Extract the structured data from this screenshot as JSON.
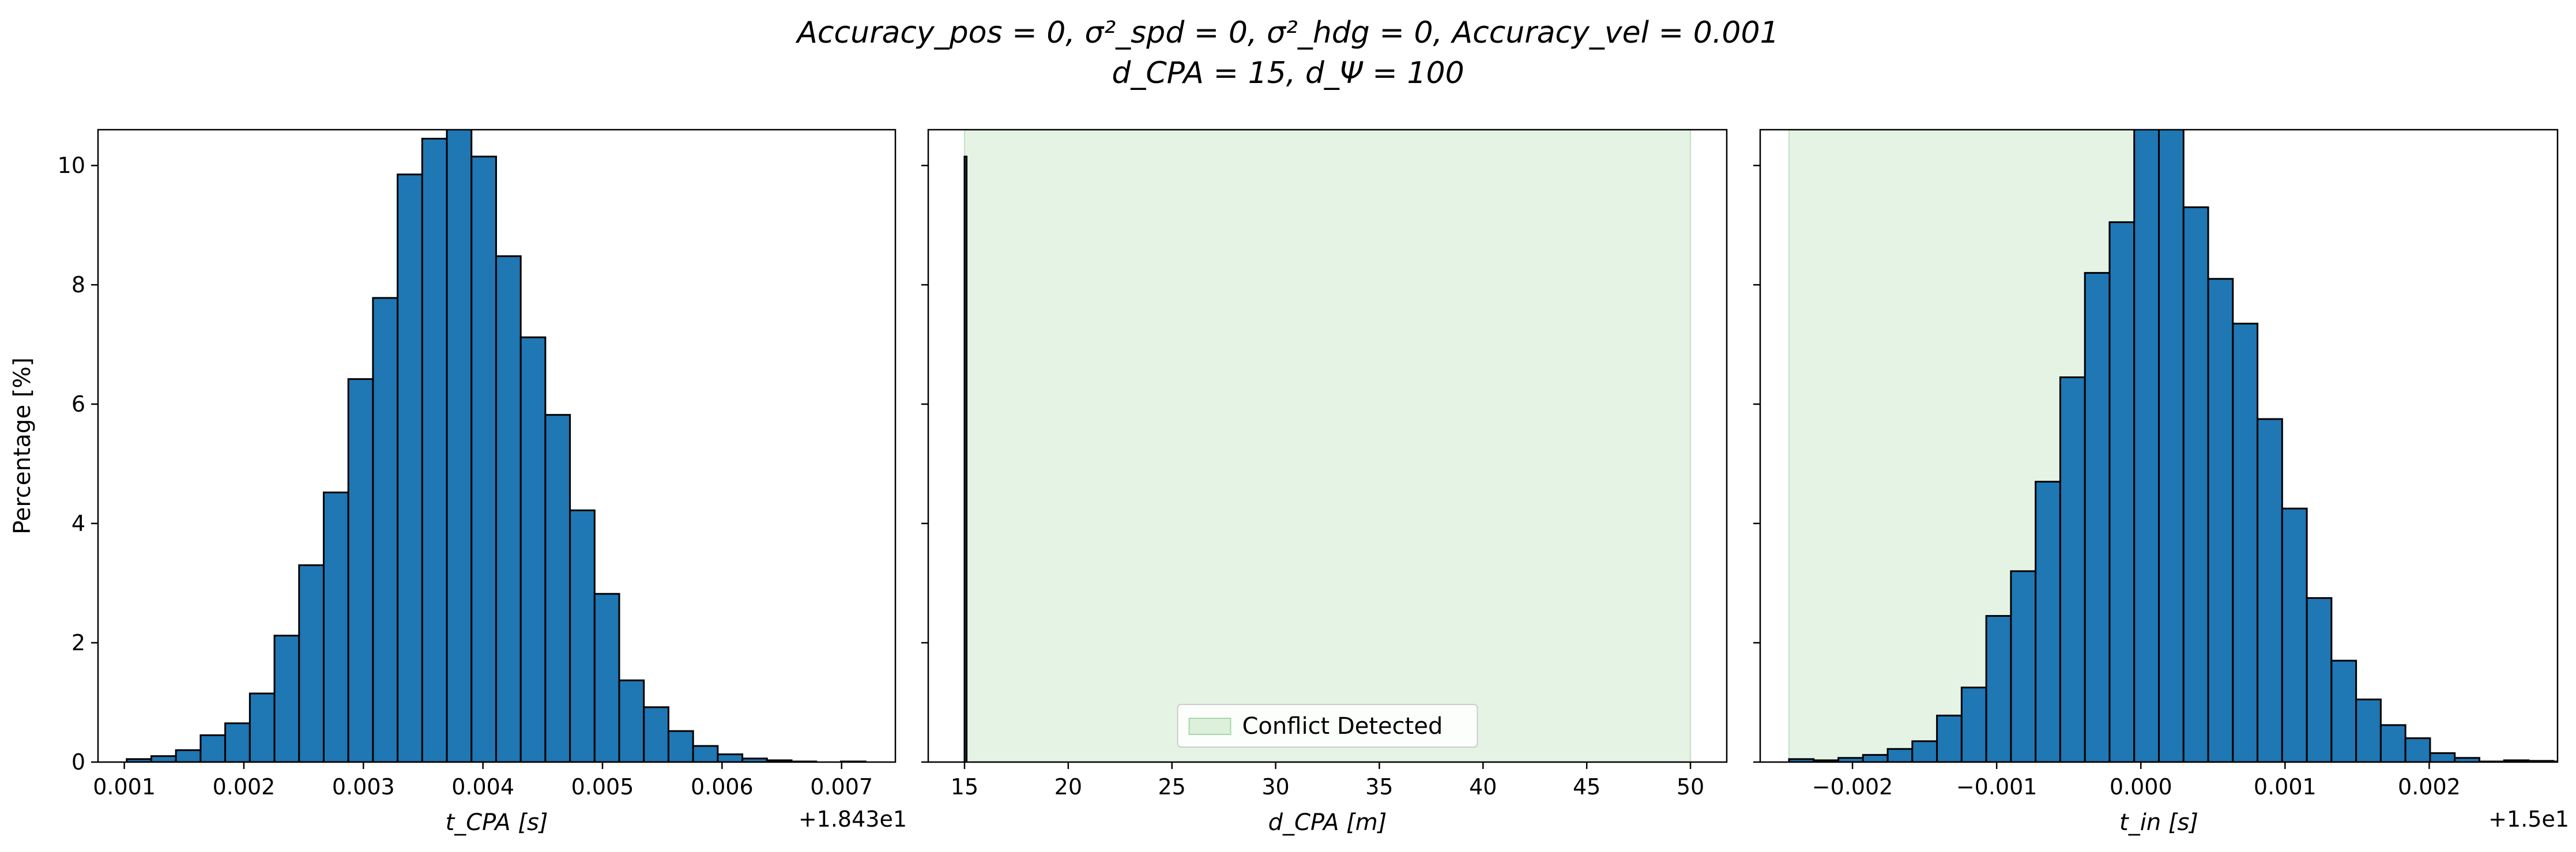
{
  "figure": {
    "title_line1": "Accuracy_pos = 0, σ²_spd = 0, σ²_hdg = 0, Accuracy_vel = 0.001",
    "title_line2": "d_CPA = 15, d_Ψ = 100"
  },
  "chart_data": [
    {
      "type": "bar",
      "xlabel": "t_CPA [s]",
      "ylabel": "Percentage [%]",
      "x_offset_label": "+1.843e1",
      "xlim": [
        0.00078,
        0.00745
      ],
      "ylim": [
        0,
        10.6
      ],
      "xticks": [
        0.001,
        0.002,
        0.003,
        0.004,
        0.005,
        0.006,
        0.007
      ],
      "xtick_labels": [
        "0.001",
        "0.002",
        "0.003",
        "0.004",
        "0.005",
        "0.006",
        "0.007"
      ],
      "yticks": [
        0,
        2,
        4,
        6,
        8,
        10
      ],
      "ytick_labels": [
        "0",
        "2",
        "4",
        "6",
        "8",
        "10"
      ],
      "bin_start": 0.00102,
      "bin_width": 0.000206,
      "values": [
        0.05,
        0.1,
        0.2,
        0.45,
        0.65,
        1.15,
        2.12,
        3.3,
        4.52,
        6.42,
        7.78,
        9.85,
        10.45,
        10.62,
        10.15,
        8.48,
        7.12,
        5.82,
        4.22,
        2.82,
        1.37,
        0.92,
        0.52,
        0.27,
        0.13,
        0.06,
        0.03,
        0.01,
        0.0,
        0.01
      ],
      "bar_color": "#1f77b4",
      "edge_color": "#000000",
      "grid": false
    },
    {
      "type": "bar",
      "xlabel": "d_CPA [m]",
      "xlim": [
        13.25,
        51.75
      ],
      "ylim": [
        0,
        10.6
      ],
      "xticks": [
        15,
        20,
        25,
        30,
        35,
        40,
        45,
        50
      ],
      "xtick_labels": [
        "15",
        "20",
        "25",
        "30",
        "35",
        "40",
        "45",
        "50"
      ],
      "yticks": [
        0,
        2,
        4,
        6,
        8,
        10
      ],
      "bars": [
        {
          "x": 15.0,
          "width": 0.1,
          "value": 10.15
        }
      ],
      "shaded_region": {
        "x0": 15,
        "x1": 50,
        "color": "#2ca02c",
        "alpha": 0.12
      },
      "legend": {
        "label": "Conflict Detected",
        "placement": "lower center"
      },
      "bar_color": "#1f77b4",
      "edge_color": "#000000",
      "grid": false
    },
    {
      "type": "bar",
      "xlabel": "t_in [s]",
      "x_offset_label": "+1.5e1",
      "xlim": [
        -0.00264,
        0.00289
      ],
      "ylim": [
        0,
        10.6
      ],
      "xticks": [
        -0.002,
        -0.001,
        0.0,
        0.001,
        0.002
      ],
      "xtick_labels": [
        "−0.002",
        "−0.001",
        "0.000",
        "0.001",
        "0.002"
      ],
      "yticks": [
        0,
        2,
        4,
        6,
        8,
        10
      ],
      "bin_start": -0.00244,
      "bin_width": 0.000171,
      "values": [
        0.05,
        0.03,
        0.07,
        0.12,
        0.22,
        0.35,
        0.78,
        1.25,
        2.45,
        3.2,
        4.7,
        6.45,
        8.2,
        9.05,
        10.65,
        10.65,
        9.3,
        8.1,
        7.35,
        5.75,
        4.25,
        2.75,
        1.7,
        1.05,
        0.62,
        0.4,
        0.15,
        0.07,
        0.01,
        0.03,
        0.02,
        0.01
      ],
      "shaded_region": {
        "x0": -0.00244,
        "x1": 0.0,
        "color": "#2ca02c",
        "alpha": 0.12
      },
      "bar_color": "#1f77b4",
      "edge_color": "#000000",
      "grid": false
    }
  ]
}
